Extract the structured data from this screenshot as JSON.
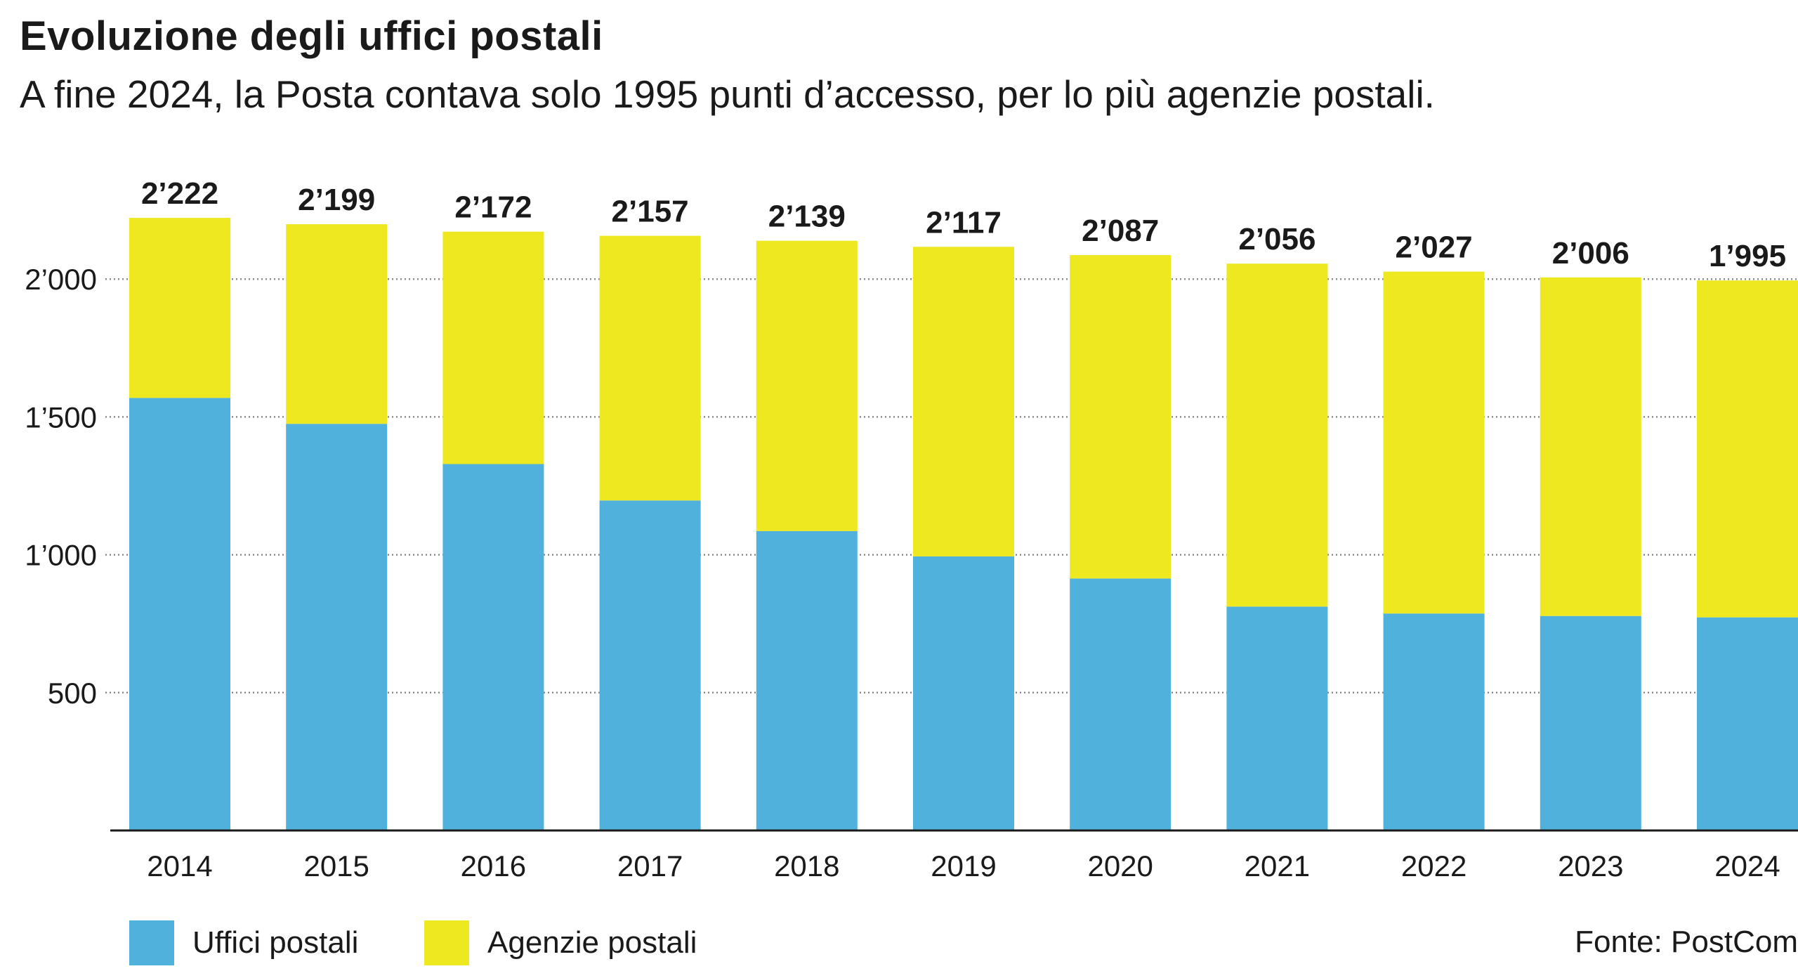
{
  "chart_data": {
    "type": "bar",
    "stacked": true,
    "title": "Evoluzione degli uffici postali",
    "subtitle": "A fine 2024, la Posta contava solo 1995 punti d’accesso, per lo più agenzie postali.",
    "categories": [
      "2014",
      "2015",
      "2016",
      "2017",
      "2018",
      "2019",
      "2020",
      "2021",
      "2022",
      "2023",
      "2024"
    ],
    "series": [
      {
        "name": "Uffici postali",
        "color": "#50b1dc",
        "values": [
          1569,
          1475,
          1329,
          1197,
          1086,
          994,
          914,
          812,
          787,
          778,
          773
        ]
      },
      {
        "name": "Agenzie postali",
        "color": "#eee821",
        "values": [
          653,
          724,
          843,
          960,
          1053,
          1123,
          1173,
          1244,
          1240,
          1228,
          1222
        ]
      }
    ],
    "totals": [
      2222,
      2199,
      2172,
      2157,
      2139,
      2117,
      2087,
      2056,
      2027,
      2006,
      1995
    ],
    "total_labels": [
      "2’222",
      "2’199",
      "2’172",
      "2’157",
      "2’139",
      "2’117",
      "2’087",
      "2’056",
      "2’027",
      "2’006",
      "1’995"
    ],
    "y_ticks": [
      500,
      1000,
      1500,
      2000
    ],
    "y_tick_labels": [
      "500",
      "1’000",
      "1’500",
      "2’000"
    ],
    "ylim": [
      0,
      2222
    ],
    "grid": "horizontal-dotted",
    "legend_position": "bottom-left",
    "source": "Fonte: PostCom"
  }
}
